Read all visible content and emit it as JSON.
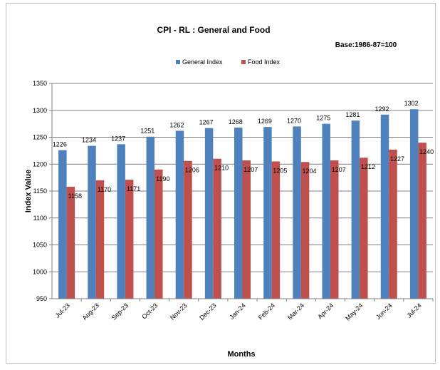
{
  "chart_data": {
    "type": "bar",
    "title": "CPI - RL : General and Food",
    "subtitle": "Base:1986-87=100",
    "xlabel": "Months",
    "ylabel": "Index Value",
    "categories": [
      "Jul-23",
      "Aug-23",
      "Sep-23",
      "Oct-23",
      "Nov-23",
      "Dec-23",
      "Jan-24",
      "Feb-24",
      "Mar-24",
      "Apr-24",
      "May-24",
      "Jun-24",
      "Jul-24"
    ],
    "series": [
      {
        "name": "General Index",
        "color": "#4f81bd",
        "values": [
          1226,
          1234,
          1237,
          1251,
          1262,
          1267,
          1268,
          1269,
          1270,
          1275,
          1281,
          1292,
          1302
        ]
      },
      {
        "name": "Food Index",
        "color": "#c0504d",
        "values": [
          1158,
          1170,
          1171,
          1190,
          1206,
          1210,
          1207,
          1205,
          1204,
          1207,
          1212,
          1227,
          1240
        ]
      }
    ],
    "ylim": [
      950,
      1350
    ],
    "yticks": [
      950,
      1000,
      1050,
      1100,
      1150,
      1200,
      1250,
      1300,
      1350
    ],
    "grid": true,
    "legend": "top-center"
  }
}
